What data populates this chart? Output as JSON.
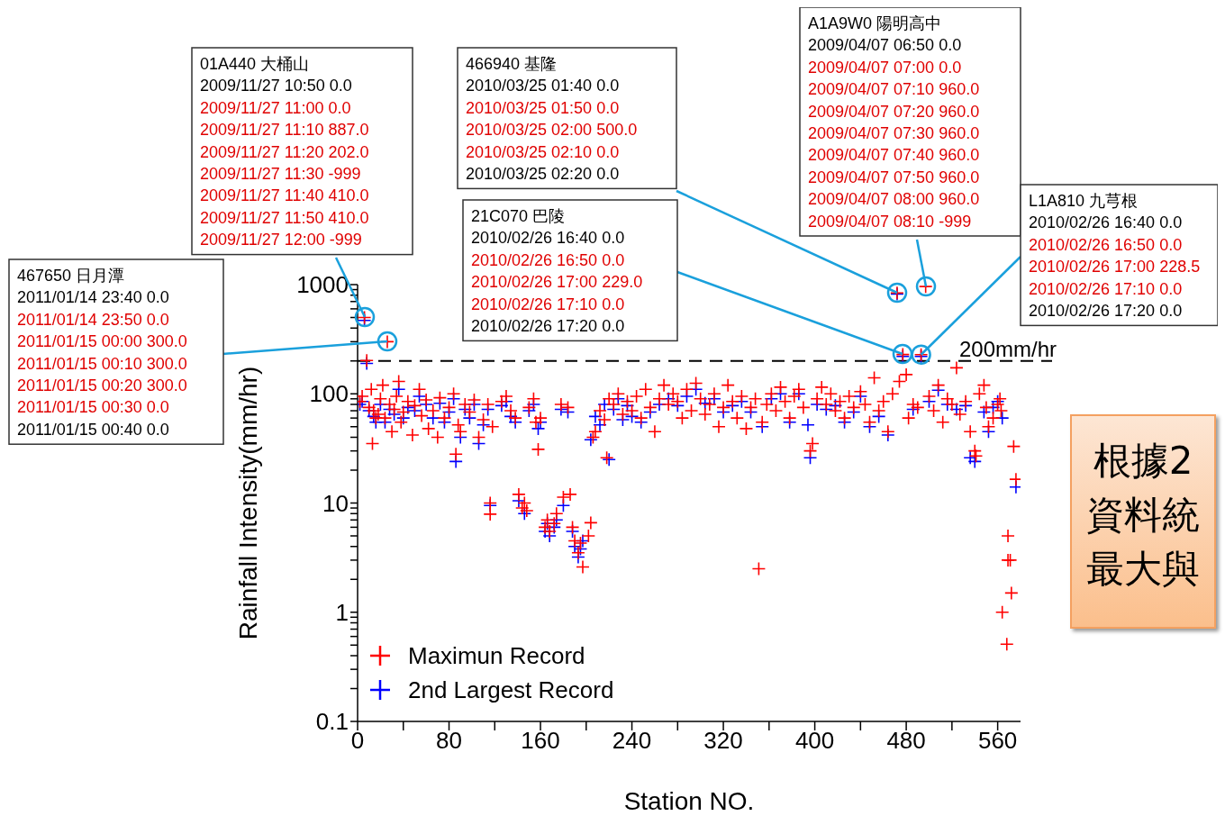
{
  "chart_data": {
    "type": "scatter",
    "xlabel": "Station NO.",
    "ylabel": "Rainfall Intensity(mm/hr)",
    "log": "y",
    "marker": "cross",
    "legend": "bottom left",
    "xlim": [
      0,
      580
    ],
    "xticks": [
      0,
      {
        "value": 40,
        "label": null
      },
      80,
      {
        "value": 120,
        "label": null
      },
      160,
      {
        "value": 200,
        "label": null
      },
      240,
      {
        "value": 280,
        "label": null
      },
      320,
      {
        "value": 360,
        "label": null
      },
      400,
      {
        "value": 440,
        "label": null
      },
      480,
      {
        "value": 520,
        "label": null
      },
      560
    ],
    "ylim": [
      0.1,
      1000
    ],
    "yticks": [
      0.1,
      {
        "value": 0.2,
        "label": null
      },
      {
        "value": 0.3,
        "label": null
      },
      {
        "value": 0.4,
        "label": null
      },
      {
        "value": 0.5,
        "label": null
      },
      {
        "value": 0.6,
        "label": null
      },
      {
        "value": 0.7,
        "label": null
      },
      {
        "value": 0.8,
        "label": null
      },
      {
        "value": 0.9,
        "label": null
      },
      1,
      {
        "value": 2,
        "label": null
      },
      {
        "value": 3,
        "label": null
      },
      {
        "value": 4,
        "label": null
      },
      {
        "value": 5,
        "label": null
      },
      {
        "value": 6,
        "label": null
      },
      {
        "value": 7,
        "label": null
      },
      {
        "value": 8,
        "label": null
      },
      {
        "value": 9,
        "label": null
      },
      10,
      {
        "value": 20,
        "label": null
      },
      {
        "value": 30,
        "label": null
      },
      {
        "value": 40,
        "label": null
      },
      {
        "value": 50,
        "label": null
      },
      {
        "value": 60,
        "label": null
      },
      {
        "value": 70,
        "label": null
      },
      {
        "value": 80,
        "label": null
      },
      {
        "value": 90,
        "label": null
      },
      100,
      {
        "value": 200,
        "label": null
      },
      {
        "value": 300,
        "label": null
      },
      {
        "value": 400,
        "label": null
      },
      {
        "value": 500,
        "label": null
      },
      {
        "value": 600,
        "label": null
      },
      {
        "value": 700,
        "label": null
      },
      {
        "value": 800,
        "label": null
      },
      {
        "value": 900,
        "label": null
      },
      1000
    ],
    "ref_lines": [
      {
        "axis": "y",
        "value": 200,
        "label": "200mm/hr",
        "color": "#000000",
        "line_style": "dashed"
      }
    ],
    "series": [
      {
        "name": "Maximun Record",
        "color": "#ff0000",
        "x": [
          2,
          4,
          6,
          8,
          10,
          12,
          13,
          14,
          16,
          18,
          20,
          22,
          24,
          26,
          28,
          30,
          32,
          34,
          36,
          38,
          40,
          44,
          48,
          50,
          54,
          56,
          60,
          62,
          66,
          70,
          72,
          76,
          80,
          84,
          86,
          88,
          90,
          94,
          98,
          102,
          106,
          110,
          114,
          116,
          116,
          118,
          126,
          130,
          134,
          138,
          141,
          144,
          146,
          148,
          150,
          154,
          156,
          158,
          160,
          164,
          166,
          168,
          172,
          174,
          178,
          180,
          184,
          186,
          188,
          190,
          193,
          195,
          197,
          202,
          204,
          206,
          208,
          212,
          216,
          218,
          220,
          224,
          228,
          232,
          236,
          240,
          244,
          248,
          252,
          256,
          260,
          264,
          268,
          272,
          276,
          280,
          284,
          288,
          292,
          296,
          300,
          304,
          308,
          312,
          316,
          320,
          324,
          328,
          332,
          336,
          340,
          344,
          348,
          351,
          354,
          358,
          362,
          366,
          370,
          374,
          378,
          382,
          386,
          390,
          396,
          398,
          402,
          406,
          410,
          414,
          418,
          422,
          426,
          430,
          434,
          440,
          444,
          448,
          452,
          456,
          460,
          464,
          468,
          472,
          474,
          477,
          480,
          482,
          486,
          490,
          493,
          497,
          500,
          504,
          508,
          512,
          516,
          520,
          524,
          527,
          532,
          536,
          540,
          541,
          544,
          548,
          550,
          552,
          556,
          560,
          562,
          563,
          564,
          568,
          569,
          569,
          571,
          572,
          574,
          576
        ],
        "values": [
          85,
          95,
          500,
          202,
          75,
          110,
          35,
          70,
          60,
          65,
          90,
          120,
          60,
          300,
          80,
          45,
          72,
          95,
          130,
          55,
          68,
          85,
          42,
          78,
          110,
          63,
          88,
          48,
          70,
          40,
          92,
          60,
          75,
          100,
          28,
          52,
          45,
          80,
          68,
          88,
          40,
          58,
          80,
          10,
          7.9,
          50,
          85,
          95,
          70,
          60,
          12,
          9,
          10,
          8.5,
          75,
          90,
          55,
          31,
          60,
          6,
          7,
          5.5,
          6.5,
          8,
          80,
          11.3,
          75,
          12,
          6,
          4.5,
          3.5,
          4.3,
          2.6,
          5,
          6.6,
          40,
          45,
          70,
          58,
          26,
          90,
          80,
          100,
          65,
          85,
          70,
          95,
          60,
          110,
          75,
          45,
          90,
          120,
          80,
          100,
          85,
          60,
          110,
          70,
          125,
          90,
          65,
          80,
          100,
          50,
          75,
          120,
          85,
          60,
          95,
          48,
          75,
          90,
          2.5,
          55,
          80,
          100,
          70,
          115,
          85,
          60,
          95,
          110,
          75,
          30,
          35,
          90,
          115,
          80,
          100,
          70,
          85,
          60,
          95,
          75,
          105,
          80,
          55,
          140,
          70,
          85,
          45,
          100,
          840,
          130,
          229,
          150,
          60,
          80,
          75,
          228.5,
          960,
          95,
          70,
          120,
          55,
          90,
          80,
          173,
          65,
          85,
          45,
          30,
          27,
          100,
          120,
          75,
          50,
          60,
          80,
          90,
          70,
          1.0,
          0.51,
          5,
          3,
          3,
          1.5,
          33,
          16.5
        ]
      },
      {
        "name": "2nd Largest Record",
        "color": "#0000ff",
        "x": [
          2,
          4,
          6,
          8,
          10,
          14,
          16,
          20,
          24,
          28,
          32,
          36,
          40,
          44,
          50,
          54,
          60,
          66,
          72,
          76,
          80,
          84,
          86,
          90,
          94,
          98,
          102,
          106,
          110,
          114,
          116,
          126,
          130,
          134,
          138,
          141,
          146,
          150,
          154,
          158,
          160,
          164,
          166,
          168,
          172,
          174,
          178,
          180,
          184,
          188,
          190,
          193,
          195,
          197,
          204,
          208,
          212,
          216,
          220,
          224,
          228,
          232,
          236,
          240,
          248,
          256,
          264,
          272,
          280,
          288,
          296,
          304,
          312,
          320,
          328,
          336,
          344,
          354,
          362,
          370,
          378,
          386,
          394,
          396,
          402,
          410,
          418,
          426,
          434,
          440,
          448,
          456,
          464,
          472,
          477,
          486,
          493,
          500,
          508,
          516,
          524,
          532,
          536,
          540,
          548,
          552,
          556,
          560,
          564,
          576
        ],
        "values": [
          80,
          85,
          470,
          190,
          70,
          62,
          55,
          80,
          55,
          72,
          65,
          110,
          60,
          75,
          70,
          95,
          80,
          60,
          82,
          55,
          68,
          90,
          24,
          40,
          72,
          60,
          80,
          35,
          52,
          72,
          9.5,
          78,
          85,
          62,
          55,
          10.5,
          8,
          70,
          80,
          48,
          55,
          5.5,
          6.5,
          5,
          6,
          7,
          72,
          9.5,
          68,
          5.5,
          4,
          3.2,
          3.8,
          4.5,
          38,
          62,
          52,
          80,
          25,
          72,
          90,
          58,
          78,
          62,
          55,
          68,
          80,
          90,
          78,
          95,
          110,
          82,
          90,
          68,
          78,
          85,
          68,
          50,
          90,
          100,
          55,
          100,
          52,
          26,
          80,
          72,
          78,
          55,
          68,
          95,
          50,
          62,
          42,
          820,
          220,
          72,
          220,
          85,
          108,
          80,
          72,
          78,
          26,
          24,
          68,
          45,
          75,
          85,
          60,
          14
        ]
      }
    ],
    "annotations": [
      "467650 日月潭\n2011/01/14 23:40 0.0\n2011/01/14 23:50 0.0\n2011/01/15 00:00 300.0\n2011/01/15 00:10 300.0\n2011/01/15 00:20 300.0\n2011/01/15 00:30 0.0\n2011/01/15 00:40 0.0",
      "01A440 大桶山\n2009/11/27 10:50 0.0\n2009/11/27 11:00 0.0\n2009/11/27 11:10 887.0\n2009/11/27 11:20 202.0\n2009/11/27 11:30 -999\n2009/11/27 11:40 410.0\n2009/11/27 11:50 410.0\n2009/11/27 12:00 -999",
      "466940 基隆\n2010/03/25 01:40 0.0\n2010/03/25 01:50 0.0\n2010/03/25 02:00 500.0\n2010/03/25 02:10 0.0\n2010/03/25 02:20 0.0",
      "21C070 巴陵\n2010/02/26 16:40 0.0\n2010/02/26 16:50 0.0\n2010/02/26 17:00 229.0\n2010/02/26 17:10 0.0\n2010/02/26 17:20 0.0",
      "A1A9W0 陽明高中\n2009/04/07 06:50 0.0\n2009/04/07 07:00 0.0\n2009/04/07 07:10 960.0\n2009/04/07 07:20 960.0\n2009/04/07 07:30 960.0\n2009/04/07 07:40 960.0\n2009/04/07 07:50 960.0\n2009/04/07 08:00 960.0\n2009/04/07 08:10 -999",
      {
        "text": "L1A810 九芎根\n2010/02/26 16:40 0.0\n2010/02/26 16:50 0.0\n2010/02/26 17:00 228.5\n2010/02/26 17:10 0.0\n2010/02/26 17:20 0.0",
        "x": 493,
        "y": 228.5
      },
      "根據2資料統最大與"
    ]
  }
}
